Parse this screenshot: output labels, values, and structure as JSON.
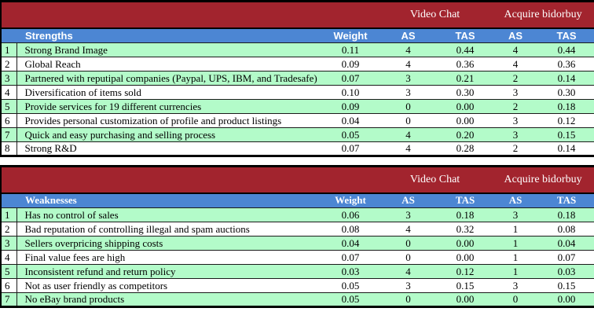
{
  "colors": {
    "band_red": "#A2242E",
    "header_blue": "#4C86D3",
    "row_green": "#B3FBC9",
    "row_white": "#FFFFFF",
    "border_black": "#000000"
  },
  "tables": [
    {
      "id": "strengths",
      "option_groups": [
        "Video Chat",
        "Acquire bidorbuy"
      ],
      "columns": {
        "label": "Strengths",
        "weight": "Weight",
        "as1": "AS",
        "tas1": "TAS",
        "as2": "AS",
        "tas2": "TAS"
      },
      "rows": [
        [
          "1",
          "Strong Brand Image",
          "0.11",
          "4",
          "0.44",
          "4",
          "0.44"
        ],
        [
          "2",
          "Global Reach",
          "0.09",
          "4",
          "0.36",
          "4",
          "0.36"
        ],
        [
          "3",
          "Partnered with reputipal companies (Paypal, UPS, IBM, and Tradesafe)",
          "0.07",
          "3",
          "0.21",
          "2",
          "0.14"
        ],
        [
          "4",
          "Diversification of items sold",
          "0.10",
          "3",
          "0.30",
          "3",
          "0.30"
        ],
        [
          "5",
          "Provide services for 19 different currencies",
          "0.09",
          "0",
          "0.00",
          "2",
          "0.18"
        ],
        [
          "6",
          "Provides personal customization of profile and product listings",
          "0.04",
          "0",
          "0.00",
          "3",
          "0.12"
        ],
        [
          "7",
          "Quick and easy purchasing and selling process",
          "0.05",
          "4",
          "0.20",
          "3",
          "0.15"
        ],
        [
          "8",
          "Strong R&D",
          "0.07",
          "4",
          "0.28",
          "2",
          "0.14"
        ]
      ]
    },
    {
      "id": "weaknesses",
      "option_groups": [
        "Video Chat",
        "Acquire bidorbuy"
      ],
      "columns": {
        "label": "Weaknesses",
        "weight": "Weight",
        "as1": "AS",
        "tas1": "TAS",
        "as2": "AS",
        "tas2": "TAS"
      },
      "rows": [
        [
          "1",
          "Has no control of sales",
          "0.06",
          "3",
          "0.18",
          "3",
          "0.18"
        ],
        [
          "2",
          "Bad reputation of controlling illegal and spam auctions",
          "0.08",
          "4",
          "0.32",
          "1",
          "0.08"
        ],
        [
          "3",
          "Sellers overpricing shipping costs",
          "0.04",
          "0",
          "0.00",
          "1",
          "0.04"
        ],
        [
          "4",
          "Final value fees are high",
          "0.07",
          "0",
          "0.00",
          "1",
          "0.07"
        ],
        [
          "5",
          "Inconsistent refund and return policy",
          "0.03",
          "4",
          "0.12",
          "1",
          "0.03"
        ],
        [
          "6",
          "Not as user friendly as competitors",
          "0.05",
          "3",
          "0.15",
          "3",
          "0.15"
        ],
        [
          "7",
          "No eBay brand products",
          "0.05",
          "0",
          "0.00",
          "0",
          "0.00"
        ]
      ]
    }
  ]
}
